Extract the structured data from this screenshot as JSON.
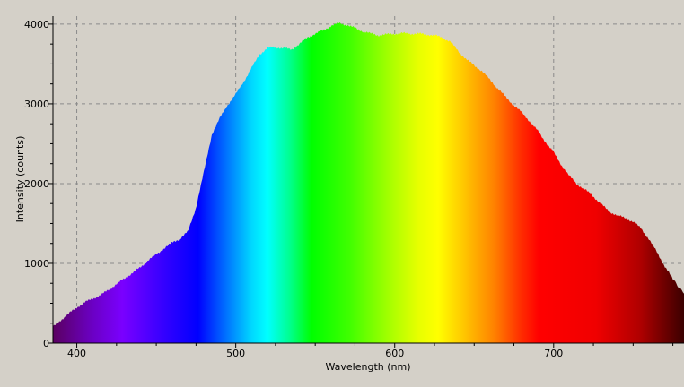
{
  "chart_data": {
    "type": "area",
    "title": "",
    "xlabel": "Wavelength (nm)",
    "ylabel": "Intensity (counts)",
    "xlim": [
      385,
      782
    ],
    "ylim": [
      0,
      4100
    ],
    "x_ticks": [
      400,
      500,
      600,
      700
    ],
    "y_ticks": [
      0,
      1000,
      2000,
      3000,
      4000
    ],
    "x_tick_labels": [
      "400",
      "500",
      "600",
      "700"
    ],
    "y_tick_labels": [
      "0",
      "1000",
      "2000",
      "3000",
      "4000"
    ],
    "grid": true,
    "legend": "none",
    "fill": "visible-spectrum color gradient under the curve",
    "series": [
      {
        "x": [
          385,
          390,
          395,
          400,
          405,
          410,
          415,
          420,
          425,
          430,
          435,
          440,
          445,
          450,
          455,
          460,
          465,
          470,
          475,
          480,
          485,
          490,
          495,
          500,
          505,
          510,
          515,
          520,
          525,
          530,
          535,
          540,
          545,
          550,
          555,
          560,
          565,
          570,
          575,
          580,
          585,
          590,
          595,
          600,
          605,
          610,
          615,
          620,
          625,
          630,
          635,
          640,
          645,
          650,
          655,
          660,
          665,
          670,
          675,
          680,
          685,
          690,
          695,
          700,
          705,
          710,
          715,
          720,
          725,
          730,
          735,
          740,
          745,
          750,
          755,
          760,
          765,
          770,
          775,
          782
        ],
        "y": [
          200,
          290,
          370,
          450,
          510,
          560,
          600,
          670,
          740,
          810,
          880,
          950,
          1040,
          1110,
          1190,
          1260,
          1310,
          1400,
          1700,
          2150,
          2620,
          2820,
          2990,
          3120,
          3280,
          3450,
          3620,
          3700,
          3710,
          3700,
          3680,
          3750,
          3830,
          3880,
          3920,
          3980,
          4010,
          3990,
          3950,
          3910,
          3880,
          3860,
          3870,
          3880,
          3885,
          3880,
          3880,
          3870,
          3860,
          3830,
          3780,
          3660,
          3560,
          3480,
          3410,
          3300,
          3190,
          3080,
          2980,
          2890,
          2780,
          2660,
          2520,
          2390,
          2230,
          2090,
          1990,
          1920,
          1840,
          1740,
          1650,
          1600,
          1570,
          1520,
          1440,
          1300,
          1140,
          960,
          800,
          620
        ]
      }
    ]
  }
}
